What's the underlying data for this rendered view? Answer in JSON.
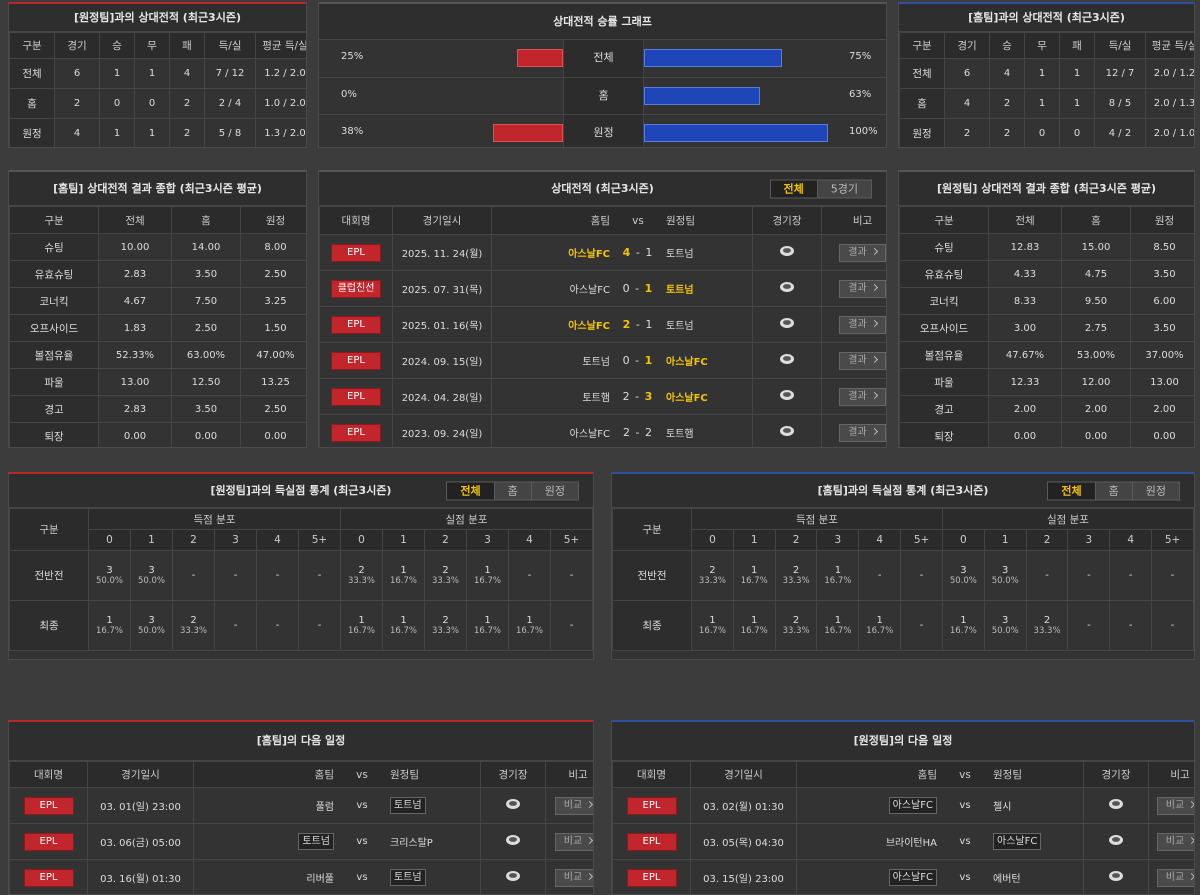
{
  "h2h_vs_away": {
    "title": "[원정팀]과의 상대전적 (최근3시즌)",
    "columns": [
      "구분",
      "경기",
      "승",
      "무",
      "패",
      "득/실",
      "평균 득/실"
    ],
    "rows": [
      [
        "전체",
        "6",
        "1",
        "1",
        "4",
        "7 / 12",
        "1.2 / 2.0"
      ],
      [
        "홈",
        "2",
        "0",
        "0",
        "2",
        "2 / 4",
        "1.0 / 2.0"
      ],
      [
        "원정",
        "4",
        "1",
        "1",
        "2",
        "5 / 8",
        "1.3 / 2.0"
      ]
    ]
  },
  "winrate": {
    "title": "상대전적 승률 그래프",
    "rows": [
      {
        "label": "전체",
        "left": 25,
        "left_label": "25%",
        "right": 75,
        "right_label": "75%"
      },
      {
        "label": "홈",
        "left": 0,
        "left_label": "0%",
        "right": 63,
        "right_label": "63%"
      },
      {
        "label": "원정",
        "left": 38,
        "left_label": "38%",
        "right": 100,
        "right_label": "100%"
      }
    ]
  },
  "h2h_vs_home": {
    "title": "[홈팀]과의 상대전적 (최근3시즌)",
    "columns": [
      "구분",
      "경기",
      "승",
      "무",
      "패",
      "득/실",
      "평균 득/실"
    ],
    "rows": [
      [
        "전체",
        "6",
        "4",
        "1",
        "1",
        "12 / 7",
        "2.0 / 1.2"
      ],
      [
        "홈",
        "4",
        "2",
        "1",
        "1",
        "8 / 5",
        "2.0 / 1.3"
      ],
      [
        "원정",
        "2",
        "2",
        "0",
        "0",
        "4 / 2",
        "2.0 / 1.0"
      ]
    ]
  },
  "avg_home": {
    "title": "[홈팀] 상대전적 결과 종합 (최근3시즌 평균)",
    "columns": [
      "구분",
      "전체",
      "홈",
      "원정"
    ],
    "rows": [
      [
        "슈팅",
        "10.00",
        "14.00",
        "8.00"
      ],
      [
        "유효슈팅",
        "2.83",
        "3.50",
        "2.50"
      ],
      [
        "코너킥",
        "4.67",
        "7.50",
        "3.25"
      ],
      [
        "오프사이드",
        "1.83",
        "2.50",
        "1.50"
      ],
      [
        "볼점유율",
        "52.33%",
        "63.00%",
        "47.00%"
      ],
      [
        "파울",
        "13.00",
        "12.50",
        "13.25"
      ],
      [
        "경고",
        "2.83",
        "3.50",
        "2.50"
      ],
      [
        "퇴장",
        "0.00",
        "0.00",
        "0.00"
      ]
    ]
  },
  "recent": {
    "title": "상대전적 (최근3시즌)",
    "tabs": [
      "전체",
      "5경기"
    ],
    "columns": [
      "대회명",
      "경기일시",
      "홈팀",
      "vs",
      "원정팀",
      "경기장",
      "비고"
    ],
    "button": "결과",
    "sep": "-",
    "rows": [
      {
        "comp": "EPL",
        "date": "2025. 11. 24(월)",
        "home": "아스날FC",
        "home_score": "4",
        "away_score": "1",
        "away": "토트넘",
        "winner": "home"
      },
      {
        "comp": "클럽친선",
        "date": "2025. 07. 31(목)",
        "home": "아스날FC",
        "home_score": "0",
        "away_score": "1",
        "away": "토트넘",
        "winner": "away"
      },
      {
        "comp": "EPL",
        "date": "2025. 01. 16(목)",
        "home": "아스날FC",
        "home_score": "2",
        "away_score": "1",
        "away": "토트넘",
        "winner": "home"
      },
      {
        "comp": "EPL",
        "date": "2024. 09. 15(일)",
        "home": "토트넘",
        "home_score": "0",
        "away_score": "1",
        "away": "아스날FC",
        "winner": "away"
      },
      {
        "comp": "EPL",
        "date": "2024. 04. 28(일)",
        "home": "토트햄",
        "home_score": "2",
        "away_score": "3",
        "away": "아스날FC",
        "winner": "away"
      },
      {
        "comp": "EPL",
        "date": "2023. 09. 24(일)",
        "home": "아스날FC",
        "home_score": "2",
        "away_score": "2",
        "away": "토트햄",
        "winner": null
      }
    ]
  },
  "avg_away": {
    "title": "[원정팀] 상대전적 결과 종합 (최근3시즌 평균)",
    "columns": [
      "구분",
      "전체",
      "홈",
      "원정"
    ],
    "rows": [
      [
        "슈팅",
        "12.83",
        "15.00",
        "8.50"
      ],
      [
        "유효슈팅",
        "4.33",
        "4.75",
        "3.50"
      ],
      [
        "코너킥",
        "8.33",
        "9.50",
        "6.00"
      ],
      [
        "오프사이드",
        "3.00",
        "2.75",
        "3.50"
      ],
      [
        "볼점유율",
        "47.67%",
        "53.00%",
        "37.00%"
      ],
      [
        "파울",
        "12.33",
        "12.00",
        "13.00"
      ],
      [
        "경고",
        "2.00",
        "2.00",
        "2.00"
      ],
      [
        "퇴장",
        "0.00",
        "0.00",
        "0.00"
      ]
    ]
  },
  "goals_vs_away": {
    "title": "[원정팀]과의 득실점 통계 (최근3시즌)",
    "tabs": [
      "전체",
      "홈",
      "원정"
    ],
    "columns": {
      "label": "구분",
      "scored": "득점 분포",
      "conceded": "실점 분포",
      "buckets": [
        "0",
        "1",
        "2",
        "3",
        "4",
        "5+"
      ]
    },
    "rows": [
      {
        "label": "전반전",
        "scored": [
          [
            "3",
            "50.0%"
          ],
          [
            "3",
            "50.0%"
          ],
          [
            "-"
          ],
          [
            "-"
          ],
          [
            "-"
          ],
          [
            "-"
          ]
        ],
        "conceded": [
          [
            "2",
            "33.3%"
          ],
          [
            "1",
            "16.7%"
          ],
          [
            "2",
            "33.3%"
          ],
          [
            "1",
            "16.7%"
          ],
          [
            "-"
          ],
          [
            "-"
          ]
        ]
      },
      {
        "label": "최종",
        "scored": [
          [
            "1",
            "16.7%"
          ],
          [
            "3",
            "50.0%"
          ],
          [
            "2",
            "33.3%"
          ],
          [
            "-"
          ],
          [
            "-"
          ],
          [
            "-"
          ]
        ],
        "conceded": [
          [
            "1",
            "16.7%"
          ],
          [
            "1",
            "16.7%"
          ],
          [
            "2",
            "33.3%"
          ],
          [
            "1",
            "16.7%"
          ],
          [
            "1",
            "16.7%"
          ],
          [
            "-"
          ]
        ]
      }
    ]
  },
  "goals_vs_home": {
    "title": "[홈팀]과의 득실점 통계 (최근3시즌)",
    "tabs": [
      "전체",
      "홈",
      "원정"
    ],
    "columns": {
      "label": "구분",
      "scored": "득점 분포",
      "conceded": "실점 분포",
      "buckets": [
        "0",
        "1",
        "2",
        "3",
        "4",
        "5+"
      ]
    },
    "rows": [
      {
        "label": "전반전",
        "scored": [
          [
            "2",
            "33.3%"
          ],
          [
            "1",
            "16.7%"
          ],
          [
            "2",
            "33.3%"
          ],
          [
            "1",
            "16.7%"
          ],
          [
            "-"
          ],
          [
            "-"
          ]
        ],
        "conceded": [
          [
            "3",
            "50.0%"
          ],
          [
            "3",
            "50.0%"
          ],
          [
            "-"
          ],
          [
            "-"
          ],
          [
            "-"
          ],
          [
            "-"
          ]
        ]
      },
      {
        "label": "최종",
        "scored": [
          [
            "1",
            "16.7%"
          ],
          [
            "1",
            "16.7%"
          ],
          [
            "2",
            "33.3%"
          ],
          [
            "1",
            "16.7%"
          ],
          [
            "1",
            "16.7%"
          ],
          [
            "-"
          ]
        ],
        "conceded": [
          [
            "1",
            "16.7%"
          ],
          [
            "3",
            "50.0%"
          ],
          [
            "2",
            "33.3%"
          ],
          [
            "-"
          ],
          [
            "-"
          ],
          [
            "-"
          ]
        ]
      }
    ]
  },
  "next_home": {
    "title": "[홈팀]의 다음 일정",
    "columns": [
      "대회명",
      "경기일시",
      "홈팀",
      "vs",
      "원정팀",
      "경기장",
      "비고"
    ],
    "button": "비교",
    "rows": [
      {
        "comp": "EPL",
        "date": "03. 01(일) 23:00",
        "home": "풀럼",
        "away": "토트넘",
        "highlight": "away"
      },
      {
        "comp": "EPL",
        "date": "03. 06(금) 05:00",
        "home": "토트넘",
        "away": "크리스탈P",
        "highlight": "home"
      },
      {
        "comp": "EPL",
        "date": "03. 16(월) 01:30",
        "home": "리버풀",
        "away": "토트넘",
        "highlight": "away"
      }
    ]
  },
  "next_away": {
    "title": "[원정팀]의 다음 일정",
    "columns": [
      "대회명",
      "경기일시",
      "홈팀",
      "vs",
      "원정팀",
      "경기장",
      "비고"
    ],
    "button": "비교",
    "rows": [
      {
        "comp": "EPL",
        "date": "03. 02(월) 01:30",
        "home": "아스날FC",
        "away": "첼시",
        "highlight": "home"
      },
      {
        "comp": "EPL",
        "date": "03. 05(목) 04:30",
        "home": "브라이턴HA",
        "away": "아스날FC",
        "highlight": "away"
      },
      {
        "comp": "EPL",
        "date": "03. 15(일) 23:00",
        "home": "아스날FC",
        "away": "에버턴",
        "highlight": "home"
      }
    ]
  }
}
